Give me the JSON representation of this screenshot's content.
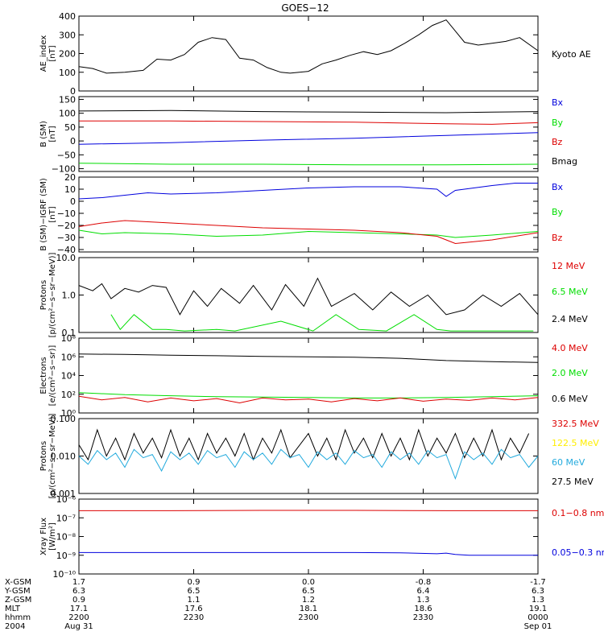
{
  "title": "GOES−12",
  "colors": {
    "black": "#000000",
    "red": "#dd0000",
    "green": "#00dd00",
    "blue": "#0000dd",
    "yellow": "#ffee00",
    "cyan": "#22aadd"
  },
  "x_ticks": [
    "2200",
    "2230",
    "2300",
    "2330",
    "0000"
  ],
  "x_axis_table": {
    "row_labels": [
      "X-GSM",
      "Y-GSM",
      "Z-GSM",
      "MLT",
      "hhmm",
      "2004"
    ],
    "columns": [
      [
        "1.7",
        "6.3",
        "0.9",
        "17.1",
        "2200",
        "Aug 31"
      ],
      [
        "0.9",
        "6.5",
        "1.1",
        "17.6",
        "2230",
        ""
      ],
      [
        "0.0",
        "6.5",
        "1.2",
        "18.1",
        "2300",
        ""
      ],
      [
        "-0.8",
        "6.4",
        "1.3",
        "18.6",
        "2330",
        ""
      ],
      [
        "-1.7",
        "6.3",
        "1.3",
        "19.1",
        "0000",
        "Sep 01"
      ]
    ]
  },
  "chart_data": [
    {
      "type": "line",
      "ylabel_lines": [
        "AE_index",
        "[nT]"
      ],
      "ylim": [
        0,
        400
      ],
      "yticks": [
        "0",
        "100",
        "200",
        "300",
        "400"
      ],
      "tick_values": [
        0,
        100,
        200,
        300,
        400
      ],
      "scale": "linear",
      "legend": [
        {
          "label": "Kyoto AE",
          "color": "black"
        }
      ],
      "series": [
        {
          "name": "Kyoto AE",
          "color": "black",
          "x": [
            0,
            0.03,
            0.06,
            0.1,
            0.14,
            0.17,
            0.2,
            0.23,
            0.26,
            0.29,
            0.32,
            0.35,
            0.38,
            0.41,
            0.44,
            0.46,
            0.48,
            0.5,
            0.53,
            0.56,
            0.59,
            0.62,
            0.65,
            0.68,
            0.71,
            0.74,
            0.77,
            0.8,
            0.82,
            0.84,
            0.87,
            0.9,
            0.93,
            0.96,
            1.0
          ],
          "y": [
            130,
            120,
            95,
            100,
            110,
            170,
            165,
            195,
            260,
            285,
            275,
            175,
            165,
            125,
            100,
            95,
            100,
            105,
            145,
            165,
            190,
            210,
            195,
            215,
            255,
            300,
            350,
            380,
            320,
            260,
            245,
            255,
            265,
            285,
            215
          ]
        }
      ]
    },
    {
      "type": "line",
      "ylabel_lines": [
        "B (SM)",
        "[nT]"
      ],
      "ylim": [
        -110,
        160
      ],
      "yticks": [
        "−100",
        "−50",
        "0",
        "50",
        "100",
        "150"
      ],
      "tick_values": [
        -100,
        -50,
        0,
        50,
        100,
        150
      ],
      "scale": "linear",
      "legend": [
        {
          "label": "Bx",
          "color": "blue"
        },
        {
          "label": "By",
          "color": "green"
        },
        {
          "label": "Bz",
          "color": "red"
        },
        {
          "label": "Bmag",
          "color": "black"
        }
      ],
      "series": [
        {
          "name": "Bx",
          "color": "blue",
          "x": [
            0,
            0.2,
            0.4,
            0.6,
            0.8,
            1.0
          ],
          "y": [
            -12,
            -6,
            3,
            10,
            20,
            30
          ]
        },
        {
          "name": "By",
          "color": "green",
          "x": [
            0,
            0.2,
            0.4,
            0.6,
            0.8,
            1.0
          ],
          "y": [
            -80,
            -84,
            -84,
            -86,
            -86,
            -84
          ]
        },
        {
          "name": "Bz",
          "color": "red",
          "x": [
            0,
            0.2,
            0.4,
            0.6,
            0.8,
            0.9,
            1.0
          ],
          "y": [
            72,
            72,
            70,
            68,
            62,
            60,
            66
          ]
        },
        {
          "name": "Bmag",
          "color": "black",
          "x": [
            0,
            0.2,
            0.4,
            0.6,
            0.8,
            0.9,
            1.0
          ],
          "y": [
            108,
            110,
            106,
            104,
            102,
            104,
            106
          ]
        }
      ]
    },
    {
      "type": "line",
      "ylabel_lines": [
        "B (SM)−IGRF (SM)",
        "[nT]"
      ],
      "ylim": [
        -42,
        20
      ],
      "yticks": [
        "−40",
        "−30",
        "−20",
        "−10",
        "0",
        "10",
        "20"
      ],
      "tick_values": [
        -40,
        -30,
        -20,
        -10,
        0,
        10,
        20
      ],
      "scale": "linear",
      "legend": [
        {
          "label": "Bx",
          "color": "blue"
        },
        {
          "label": "By",
          "color": "green"
        },
        {
          "label": "Bz",
          "color": "red"
        }
      ],
      "series": [
        {
          "name": "Bx",
          "color": "blue",
          "x": [
            0,
            0.05,
            0.1,
            0.15,
            0.2,
            0.3,
            0.4,
            0.5,
            0.6,
            0.7,
            0.78,
            0.8,
            0.82,
            0.86,
            0.9,
            0.95,
            1.0
          ],
          "y": [
            2,
            3,
            5,
            7,
            6,
            7,
            9,
            11,
            12,
            12,
            10,
            4,
            9,
            11,
            13,
            15,
            15
          ]
        },
        {
          "name": "By",
          "color": "green",
          "x": [
            0,
            0.05,
            0.1,
            0.2,
            0.3,
            0.4,
            0.5,
            0.6,
            0.7,
            0.78,
            0.82,
            0.9,
            1.0
          ],
          "y": [
            -24,
            -27,
            -26,
            -27,
            -29,
            -28,
            -25,
            -26,
            -27,
            -28,
            -30,
            -28,
            -25
          ]
        },
        {
          "name": "Bz",
          "color": "red",
          "x": [
            0,
            0.05,
            0.1,
            0.15,
            0.2,
            0.3,
            0.4,
            0.5,
            0.6,
            0.7,
            0.78,
            0.8,
            0.82,
            0.9,
            1.0
          ],
          "y": [
            -21,
            -18,
            -16,
            -17,
            -18,
            -20,
            -22,
            -23,
            -24,
            -26,
            -29,
            -32,
            -35,
            -32,
            -26
          ]
        }
      ]
    },
    {
      "type": "line",
      "ylabel_lines": [
        "Protons",
        "[p/(cm²−s−sr−MeV)]"
      ],
      "ylim": [
        0.1,
        10
      ],
      "yticks": [
        "0.1",
        "1.0",
        "10.0"
      ],
      "tick_values": [
        0.1,
        1,
        10
      ],
      "scale": "log",
      "legend": [
        {
          "label": "12 MeV",
          "color": "red"
        },
        {
          "label": "6.5 MeV",
          "color": "green"
        },
        {
          "label": "2.4 MeV",
          "color": "black"
        }
      ],
      "series": [
        {
          "name": "2.4 MeV",
          "color": "black",
          "x": [
            0,
            0.03,
            0.05,
            0.07,
            0.1,
            0.13,
            0.16,
            0.19,
            0.22,
            0.25,
            0.28,
            0.31,
            0.35,
            0.38,
            0.42,
            0.45,
            0.49,
            0.52,
            0.55,
            0.6,
            0.64,
            0.68,
            0.72,
            0.76,
            0.8,
            0.84,
            0.88,
            0.92,
            0.96,
            1.0
          ],
          "y": [
            1.8,
            1.3,
            2,
            0.8,
            1.5,
            1.2,
            1.8,
            1.6,
            0.3,
            1.3,
            0.5,
            1.5,
            0.6,
            1.8,
            0.4,
            1.9,
            0.5,
            2.8,
            0.5,
            1.1,
            0.4,
            1.2,
            0.5,
            1.0,
            0.3,
            0.4,
            1.0,
            0.5,
            1.1,
            0.3
          ]
        },
        {
          "name": "6.5 MeV",
          "color": "green",
          "x": [
            0.07,
            0.09,
            0.12,
            0.16,
            0.19,
            0.23,
            0.3,
            0.34,
            0.44,
            0.51,
            0.56,
            0.61,
            0.67,
            0.73,
            0.78,
            0.81,
            0.99
          ],
          "y": [
            0.3,
            0.12,
            0.3,
            0.12,
            0.12,
            0.11,
            0.12,
            0.11,
            0.2,
            0.11,
            0.3,
            0.12,
            0.11,
            0.3,
            0.12,
            0.11,
            0.11
          ]
        }
      ]
    },
    {
      "type": "line",
      "ylabel_lines": [
        "Electrons",
        "[e/(cm²−s−sr)]"
      ],
      "ylim": [
        1,
        100000000
      ],
      "yticks": [
        "10⁰",
        "10²",
        "10⁴",
        "10⁶",
        "10⁸"
      ],
      "tick_values": [
        1,
        100,
        10000,
        1000000,
        100000000
      ],
      "scale": "log",
      "legend": [
        {
          "label": "4.0 MeV",
          "color": "red"
        },
        {
          "label": "2.0 MeV",
          "color": "green"
        },
        {
          "label": "0.6 MeV",
          "color": "black"
        }
      ],
      "series": [
        {
          "name": "0.6 MeV",
          "color": "black",
          "x": [
            0,
            0.1,
            0.2,
            0.3,
            0.4,
            0.5,
            0.6,
            0.7,
            0.8,
            0.9,
            1.0
          ],
          "y": [
            2000000,
            1800000,
            1500000,
            1300000,
            1100000,
            1000000,
            900000,
            700000,
            400000,
            300000,
            250000
          ]
        },
        {
          "name": "2.0 MeV",
          "color": "green",
          "x": [
            0,
            0.1,
            0.2,
            0.3,
            0.4,
            0.5,
            0.6,
            0.7,
            0.8,
            0.9,
            1.0
          ],
          "y": [
            150,
            90,
            70,
            55,
            50,
            45,
            40,
            40,
            45,
            55,
            70
          ]
        },
        {
          "name": "4.0 MeV",
          "color": "red",
          "x": [
            0,
            0.05,
            0.1,
            0.15,
            0.2,
            0.25,
            0.3,
            0.35,
            0.4,
            0.45,
            0.5,
            0.55,
            0.6,
            0.65,
            0.7,
            0.75,
            0.8,
            0.85,
            0.9,
            0.95,
            1.0
          ],
          "y": [
            60,
            25,
            45,
            15,
            40,
            20,
            35,
            12,
            40,
            25,
            30,
            15,
            35,
            20,
            40,
            18,
            30,
            22,
            40,
            25,
            45
          ]
        }
      ]
    },
    {
      "type": "line",
      "ylabel_lines": [
        "Protons",
        "[p/(cm²−s−sr−MeV)]"
      ],
      "ylim": [
        0.001,
        0.1
      ],
      "yticks": [
        "0.001",
        "0.010",
        "0.100"
      ],
      "tick_values": [
        0.001,
        0.01,
        0.1
      ],
      "scale": "log",
      "legend": [
        {
          "label": "332.5 MeV",
          "color": "red"
        },
        {
          "label": "122.5 MeV",
          "color": "yellow"
        },
        {
          "label": "60 MeV",
          "color": "cyan"
        },
        {
          "label": "27.5 MeV",
          "color": "black"
        }
      ],
      "series": [
        {
          "name": "27.5 MeV",
          "color": "black",
          "x": [
            0,
            0.02,
            0.04,
            0.06,
            0.08,
            0.1,
            0.12,
            0.14,
            0.16,
            0.18,
            0.2,
            0.22,
            0.24,
            0.26,
            0.28,
            0.3,
            0.32,
            0.34,
            0.36,
            0.38,
            0.4,
            0.42,
            0.44,
            0.46,
            0.5,
            0.52,
            0.54,
            0.56,
            0.58,
            0.6,
            0.62,
            0.64,
            0.66,
            0.68,
            0.7,
            0.72,
            0.74,
            0.76,
            0.78,
            0.8,
            0.82,
            0.84,
            0.86,
            0.88,
            0.9,
            0.92,
            0.94,
            0.96,
            0.98
          ],
          "y": [
            0.02,
            0.008,
            0.05,
            0.01,
            0.03,
            0.008,
            0.04,
            0.012,
            0.03,
            0.009,
            0.05,
            0.01,
            0.03,
            0.008,
            0.04,
            0.012,
            0.03,
            0.01,
            0.04,
            0.008,
            0.03,
            0.012,
            0.05,
            0.009,
            0.04,
            0.01,
            0.03,
            0.008,
            0.05,
            0.012,
            0.03,
            0.009,
            0.04,
            0.01,
            0.03,
            0.008,
            0.05,
            0.01,
            0.03,
            0.012,
            0.04,
            0.009,
            0.03,
            0.01,
            0.05,
            0.008,
            0.03,
            0.012,
            0.04
          ]
        },
        {
          "name": "60 MeV",
          "color": "cyan",
          "x": [
            0,
            0.02,
            0.04,
            0.06,
            0.08,
            0.1,
            0.12,
            0.14,
            0.16,
            0.18,
            0.2,
            0.22,
            0.24,
            0.26,
            0.28,
            0.3,
            0.32,
            0.34,
            0.36,
            0.38,
            0.4,
            0.42,
            0.44,
            0.46,
            0.48,
            0.5,
            0.52,
            0.54,
            0.56,
            0.58,
            0.6,
            0.62,
            0.64,
            0.66,
            0.68,
            0.7,
            0.72,
            0.74,
            0.76,
            0.78,
            0.8,
            0.82,
            0.84,
            0.86,
            0.88,
            0.9,
            0.92,
            0.94,
            0.96,
            0.98,
            1.0
          ],
          "y": [
            0.01,
            0.006,
            0.014,
            0.008,
            0.012,
            0.005,
            0.015,
            0.009,
            0.011,
            0.004,
            0.013,
            0.008,
            0.012,
            0.006,
            0.014,
            0.009,
            0.011,
            0.005,
            0.013,
            0.008,
            0.012,
            0.006,
            0.015,
            0.009,
            0.011,
            0.005,
            0.013,
            0.008,
            0.012,
            0.006,
            0.014,
            0.009,
            0.011,
            0.005,
            0.013,
            0.008,
            0.012,
            0.006,
            0.014,
            0.009,
            0.011,
            0.0025,
            0.013,
            0.008,
            0.012,
            0.006,
            0.015,
            0.009,
            0.011,
            0.005,
            0.01
          ]
        }
      ]
    },
    {
      "type": "line",
      "ylabel_lines": [
        "Xray Flux",
        "[W/m²]"
      ],
      "ylim": [
        1e-10,
        1e-06
      ],
      "yticks": [
        "10⁻¹⁰",
        "10⁻⁹",
        "10⁻⁸",
        "10⁻⁷",
        "10⁻⁶"
      ],
      "tick_values": [
        1e-10,
        1e-09,
        1e-08,
        1e-07,
        1e-06
      ],
      "scale": "log",
      "legend": [
        {
          "label": "0.1−0.8 nm",
          "color": "red"
        },
        {
          "label": "0.05−0.3 nm",
          "color": "blue"
        }
      ],
      "series": [
        {
          "name": "0.1−0.8 nm",
          "color": "red",
          "x": [
            0,
            0.2,
            0.4,
            0.6,
            0.8,
            1.0
          ],
          "y": [
            2.4e-07,
            2.4e-07,
            2.5e-07,
            2.5e-07,
            2.4e-07,
            2.4e-07
          ]
        },
        {
          "name": "0.05−0.3 nm",
          "color": "blue",
          "x": [
            0,
            0.2,
            0.4,
            0.6,
            0.7,
            0.78,
            0.8,
            0.82,
            0.85,
            0.9,
            1.0
          ],
          "y": [
            1.4e-09,
            1.4e-09,
            1.4e-09,
            1.4e-09,
            1.35e-09,
            1.2e-09,
            1.3e-09,
            1.1e-09,
            1e-09,
            1e-09,
            1e-09
          ]
        }
      ]
    }
  ]
}
